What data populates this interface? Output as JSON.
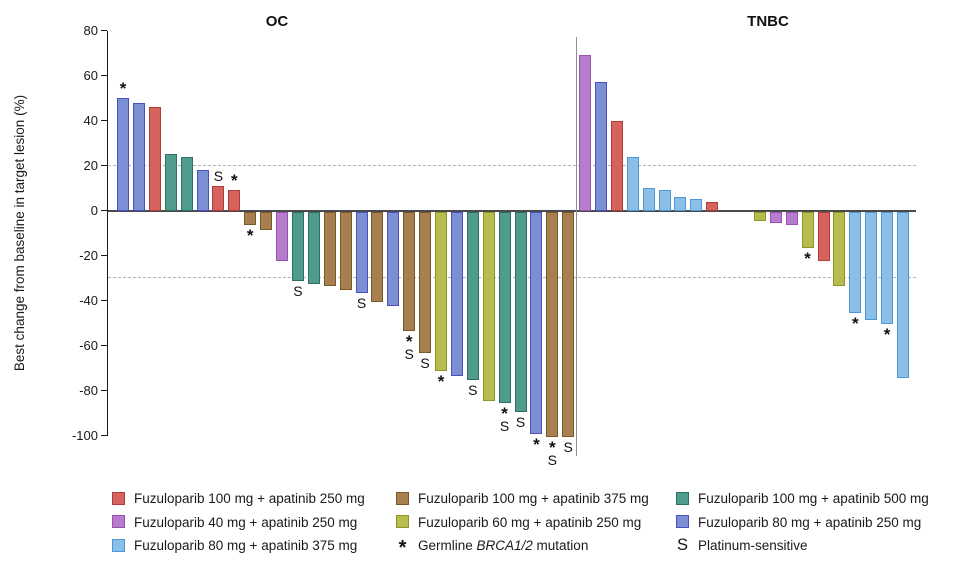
{
  "chart_data": {
    "type": "bar",
    "subtype": "waterfall",
    "ylabel": "Best change from baseline in target lesion (%)",
    "ylim": [
      -100,
      80
    ],
    "yticks": [
      80,
      60,
      40,
      20,
      0,
      -20,
      -40,
      -60,
      -80,
      -100
    ],
    "reference_lines": [
      20,
      -30
    ],
    "grid": "off",
    "legend_position": "bottom",
    "mark_meanings": {
      "*": "Germline BRCA1/2 mutation",
      "S": "Platinum-sensitive"
    },
    "groups": [
      {
        "name": "OC",
        "bars": [
          {
            "value": 50,
            "arm": "royal",
            "marks": "*"
          },
          {
            "value": 48,
            "arm": "royal",
            "marks": ""
          },
          {
            "value": 46,
            "arm": "red",
            "marks": ""
          },
          {
            "value": 25,
            "arm": "teal",
            "marks": ""
          },
          {
            "value": 24,
            "arm": "teal",
            "marks": ""
          },
          {
            "value": 18,
            "arm": "royal",
            "marks": ""
          },
          {
            "value": 11,
            "arm": "red",
            "marks": "S"
          },
          {
            "value": 9,
            "arm": "red",
            "marks": "*"
          },
          {
            "value": -6,
            "arm": "brown",
            "marks": "*"
          },
          {
            "value": -8,
            "arm": "brown",
            "marks": ""
          },
          {
            "value": -22,
            "arm": "orchid",
            "marks": ""
          },
          {
            "value": -31,
            "arm": "teal",
            "marks": "S"
          },
          {
            "value": -32,
            "arm": "teal",
            "marks": ""
          },
          {
            "value": -33,
            "arm": "brown",
            "marks": ""
          },
          {
            "value": -35,
            "arm": "brown",
            "marks": ""
          },
          {
            "value": -36,
            "arm": "royal",
            "marks": "S"
          },
          {
            "value": -40,
            "arm": "brown",
            "marks": ""
          },
          {
            "value": -42,
            "arm": "royal",
            "marks": ""
          },
          {
            "value": -53,
            "arm": "brown",
            "marks": "*S"
          },
          {
            "value": -63,
            "arm": "brown",
            "marks": "S"
          },
          {
            "value": -71,
            "arm": "olive",
            "marks": "*"
          },
          {
            "value": -73,
            "arm": "royal",
            "marks": ""
          },
          {
            "value": -75,
            "arm": "teal",
            "marks": "S"
          },
          {
            "value": -84,
            "arm": "olive",
            "marks": ""
          },
          {
            "value": -85,
            "arm": "teal",
            "marks": "*S"
          },
          {
            "value": -89,
            "arm": "teal",
            "marks": "S"
          },
          {
            "value": -99,
            "arm": "royal",
            "marks": "*"
          },
          {
            "value": -100,
            "arm": "brown",
            "marks": "*S"
          },
          {
            "value": -100,
            "arm": "brown",
            "marks": "S"
          }
        ]
      },
      {
        "name": "TNBC",
        "bars": [
          {
            "value": 69,
            "arm": "orchid",
            "marks": ""
          },
          {
            "value": 57,
            "arm": "royal",
            "marks": ""
          },
          {
            "value": 40,
            "arm": "red",
            "marks": ""
          },
          {
            "value": 24,
            "arm": "lblue",
            "marks": ""
          },
          {
            "value": 10,
            "arm": "lblue",
            "marks": ""
          },
          {
            "value": 9,
            "arm": "lblue",
            "marks": ""
          },
          {
            "value": 6,
            "arm": "lblue",
            "marks": ""
          },
          {
            "value": 5,
            "arm": "lblue",
            "marks": ""
          },
          {
            "value": 4,
            "arm": "red",
            "marks": ""
          },
          {
            "value": 0,
            "arm": null,
            "marks": ""
          },
          {
            "value": 0,
            "arm": null,
            "marks": ""
          },
          {
            "value": -4,
            "arm": "olive",
            "marks": ""
          },
          {
            "value": -5,
            "arm": "orchid",
            "marks": ""
          },
          {
            "value": -6,
            "arm": "orchid",
            "marks": ""
          },
          {
            "value": -16,
            "arm": "olive",
            "marks": "*"
          },
          {
            "value": -22,
            "arm": "red",
            "marks": ""
          },
          {
            "value": -33,
            "arm": "olive",
            "marks": ""
          },
          {
            "value": -45,
            "arm": "lblue",
            "marks": "*"
          },
          {
            "value": -48,
            "arm": "lblue",
            "marks": ""
          },
          {
            "value": -50,
            "arm": "lblue",
            "marks": "*"
          },
          {
            "value": -74,
            "arm": "lblue",
            "marks": ""
          }
        ]
      }
    ],
    "arms": {
      "red": {
        "label": "Fuzuloparib 100 mg + apatinib 250 mg",
        "fill": "#d5625d",
        "border": "#b13c38"
      },
      "orchid": {
        "label": "Fuzuloparib 40 mg + apatinib 250 mg",
        "fill": "#b77ccb",
        "border": "#9851ae"
      },
      "lblue": {
        "label": "Fuzuloparib 80 mg + apatinib 375 mg",
        "fill": "#89bfe9",
        "border": "#4d97d7"
      },
      "brown": {
        "label": "Fuzuloparib 100 mg + apatinib 375 mg",
        "fill": "#a8804f",
        "border": "#7d5826"
      },
      "olive": {
        "label": "Fuzuloparib 60 mg + apatinib 250 mg",
        "fill": "#b7bc4f",
        "border": "#8f9427"
      },
      "teal": {
        "label": "Fuzuloparib 100 mg + apatinib 500 mg",
        "fill": "#4f9c8d",
        "border": "#2d7164"
      },
      "royal": {
        "label": "Fuzuloparib 80 mg + apatinib 250 mg",
        "fill": "#7c8fd3",
        "border": "#4950c6"
      }
    },
    "markers": {
      "asterisk": {
        "symbol": "*",
        "label_parts": [
          "Germline ",
          "BRCA1/2",
          " mutation"
        ]
      },
      "platinum": {
        "symbol": "S",
        "label": "Platinum-sensitive"
      }
    },
    "legend_columns": [
      [
        "arm:red",
        "arm:orchid",
        "arm:lblue"
      ],
      [
        "arm:brown",
        "arm:olive",
        "marker:asterisk"
      ],
      [
        "arm:teal",
        "arm:royal",
        "marker:platinum"
      ]
    ]
  }
}
